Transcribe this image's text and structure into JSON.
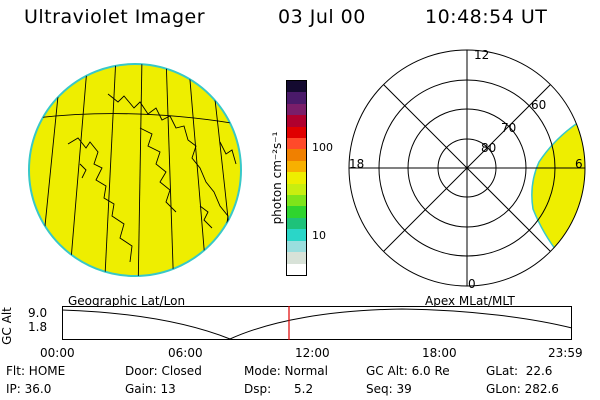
{
  "header": {
    "title": "Ultraviolet Imager",
    "date": "03 Jul 00",
    "time": "10:48:54 UT"
  },
  "colorbar": {
    "label": "photon cm⁻²s⁻¹",
    "ticks": [
      "100",
      "10"
    ],
    "colors": [
      "#ffffff",
      "#d8e2d8",
      "#9adede",
      "#2ad6c8",
      "#1ec27a",
      "#2fd42e",
      "#7ee41a",
      "#c8ee10",
      "#eeee00",
      "#f7b000",
      "#f08000",
      "#ff4a2a",
      "#e00000",
      "#b0002e",
      "#7a1e6a",
      "#4a1a6a",
      "#140a30"
    ]
  },
  "geo_panel": {
    "caption": "Geographic Lat/Lon",
    "fill_color": "#eeee00"
  },
  "polar_panel": {
    "caption": "Apex MLat/MLT",
    "mlt_labels": {
      "top": "12",
      "left": "18",
      "right": "6",
      "bottom": "0"
    },
    "lat_labels": [
      "60",
      "70",
      "80"
    ]
  },
  "timeline": {
    "axis_label": "GC Alt",
    "y_ticks": [
      "9.0",
      "1.8"
    ],
    "x_ticks": [
      "00:00",
      "06:00",
      "12:00",
      "18:00",
      "23:59"
    ],
    "marker_color": "#e00000"
  },
  "info": {
    "row1": [
      "Flt: HOME",
      "Door: Closed",
      "Mode: Normal",
      "GC Alt: 6.0 Re",
      "GLat:  22.6"
    ],
    "row2": [
      "IP: 36.0",
      "Gain: 13",
      "Dsp:      5.2",
      "Seq: 39",
      "GLon: 282.6"
    ]
  }
}
